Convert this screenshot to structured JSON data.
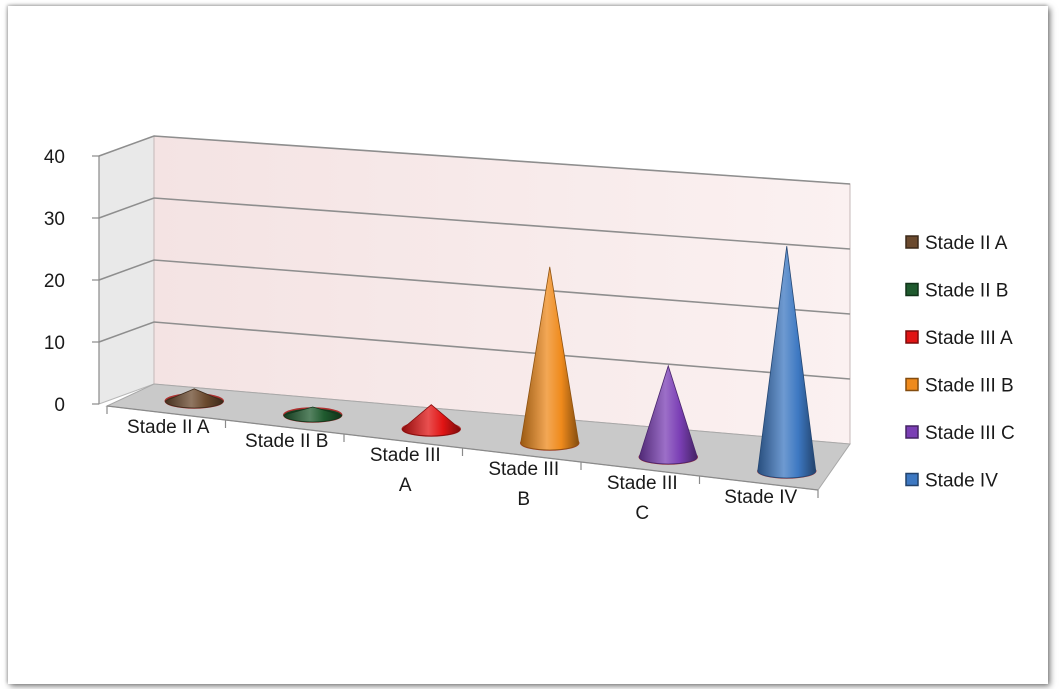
{
  "chart_data": {
    "type": "bar",
    "style": "3d-cone",
    "title": "",
    "xlabel": "",
    "ylabel": "",
    "ylim": [
      0,
      40
    ],
    "y_ticks": [
      0,
      10,
      20,
      30,
      40
    ],
    "y_tick_labels": [
      "0",
      "10",
      "20",
      "30",
      "40"
    ],
    "grid": true,
    "legend_position": "right",
    "categories": [
      "Stade II A",
      "Stade II B",
      "Stade III A",
      "Stade III B",
      "Stade III C",
      "Stade IV"
    ],
    "category_labels": [
      [
        "Stade II A"
      ],
      [
        "Stade II B"
      ],
      [
        "Stade III",
        "A"
      ],
      [
        "Stade III",
        "B"
      ],
      [
        "Stade III",
        "C"
      ],
      [
        "Stade IV"
      ]
    ],
    "values": [
      2,
      1,
      4,
      29,
      15,
      37
    ],
    "colors": [
      "#6b4a2e",
      "#1f5a2e",
      "#e11414",
      "#ef8a1c",
      "#7b3fb5",
      "#3d78c2"
    ],
    "legend": [
      {
        "label": "Stade II A",
        "color": "#6b4a2e"
      },
      {
        "label": "Stade II B",
        "color": "#1f5a2e"
      },
      {
        "label": "Stade III A",
        "color": "#e11414"
      },
      {
        "label": "Stade III B",
        "color": "#ef8a1c"
      },
      {
        "label": "Stade III C",
        "color": "#7b3fb5"
      },
      {
        "label": "Stade IV",
        "color": "#3d78c2"
      }
    ]
  }
}
